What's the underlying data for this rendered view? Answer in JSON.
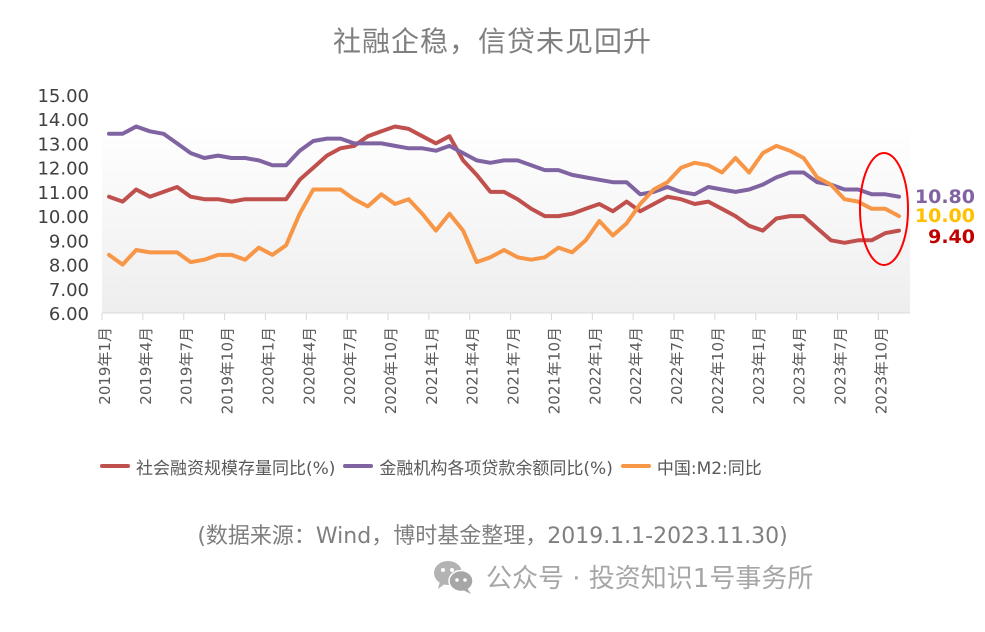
{
  "chart_data": {
    "type": "line",
    "title": "社融企稳，信贷未见回升",
    "xlabel": "",
    "ylabel": "",
    "ylim": [
      6.0,
      15.0
    ],
    "yticks": [
      "15.00",
      "14.00",
      "13.00",
      "12.00",
      "11.00",
      "10.00",
      "9.00",
      "8.00",
      "7.00",
      "6.00"
    ],
    "x_start": "2019-01",
    "x_end": "2023-11",
    "xtick_labels": [
      "2019年1月",
      "2019年4月",
      "2019年7月",
      "2019年10月",
      "2020年1月",
      "2020年4月",
      "2020年7月",
      "2020年10月",
      "2021年1月",
      "2021年4月",
      "2021年7月",
      "2021年10月",
      "2022年1月",
      "2022年4月",
      "2022年7月",
      "2022年10月",
      "2023年1月",
      "2023年4月",
      "2023年7月",
      "2023年10月"
    ],
    "grid": false,
    "legend_position": "bottom",
    "series": [
      {
        "name": "社会融资规模存量同比(%)",
        "color": "#c0504d",
        "values": [
          10.8,
          10.6,
          11.1,
          10.8,
          11.0,
          11.2,
          10.8,
          10.7,
          10.7,
          10.6,
          10.7,
          10.7,
          10.7,
          10.7,
          11.5,
          12.0,
          12.5,
          12.8,
          12.9,
          13.3,
          13.5,
          13.7,
          13.6,
          13.3,
          13.0,
          13.3,
          12.3,
          11.7,
          11.0,
          11.0,
          10.7,
          10.3,
          10.0,
          10.0,
          10.1,
          10.3,
          10.5,
          10.2,
          10.6,
          10.2,
          10.5,
          10.8,
          10.7,
          10.5,
          10.6,
          10.3,
          10.0,
          9.6,
          9.4,
          9.9,
          10.0,
          10.0,
          9.5,
          9.0,
          8.9,
          9.0,
          9.0,
          9.3,
          9.4
        ]
      },
      {
        "name": "金融机构各项贷款余额同比(%)",
        "color": "#8064a2",
        "values": [
          13.4,
          13.4,
          13.7,
          13.5,
          13.4,
          13.0,
          12.6,
          12.4,
          12.5,
          12.4,
          12.4,
          12.3,
          12.1,
          12.1,
          12.7,
          13.1,
          13.2,
          13.2,
          13.0,
          13.0,
          13.0,
          12.9,
          12.8,
          12.8,
          12.7,
          12.9,
          12.6,
          12.3,
          12.2,
          12.3,
          12.3,
          12.1,
          11.9,
          11.9,
          11.7,
          11.6,
          11.5,
          11.4,
          11.4,
          10.9,
          11.0,
          11.2,
          11.0,
          10.9,
          11.2,
          11.1,
          11.0,
          11.1,
          11.3,
          11.6,
          11.8,
          11.8,
          11.4,
          11.3,
          11.1,
          11.1,
          10.9,
          10.9,
          10.8
        ]
      },
      {
        "name": "中国:M2:同比",
        "color": "#f79646",
        "values": [
          8.4,
          8.0,
          8.6,
          8.5,
          8.5,
          8.5,
          8.1,
          8.2,
          8.4,
          8.4,
          8.2,
          8.7,
          8.4,
          8.8,
          10.1,
          11.1,
          11.1,
          11.1,
          10.7,
          10.4,
          10.9,
          10.5,
          10.7,
          10.1,
          9.4,
          10.1,
          9.4,
          8.1,
          8.3,
          8.6,
          8.3,
          8.2,
          8.3,
          8.7,
          8.5,
          9.0,
          9.8,
          9.2,
          9.7,
          10.5,
          11.1,
          11.4,
          12.0,
          12.2,
          12.1,
          11.8,
          12.4,
          11.8,
          12.6,
          12.9,
          12.7,
          12.4,
          11.6,
          11.3,
          10.7,
          10.6,
          10.3,
          10.3,
          10.0
        ]
      }
    ],
    "end_labels": [
      {
        "text": "10.80",
        "value": 10.8,
        "color": "#8064a2"
      },
      {
        "text": "10.00",
        "value": 10.0,
        "color": "#ffc000"
      },
      {
        "text": "9.40",
        "value": 9.4,
        "color": "#c00000"
      }
    ],
    "annotation": {
      "shape": "ellipse",
      "color": "#ff0000",
      "highlights": "2023年9月-2023年11月"
    }
  },
  "source_note": "(数据来源：Wind，博时基金整理，2019.1.1-2023.11.30)",
  "watermark": {
    "icon": "wechat-icon",
    "text": "公众号 · 投资知识1号事务所"
  }
}
